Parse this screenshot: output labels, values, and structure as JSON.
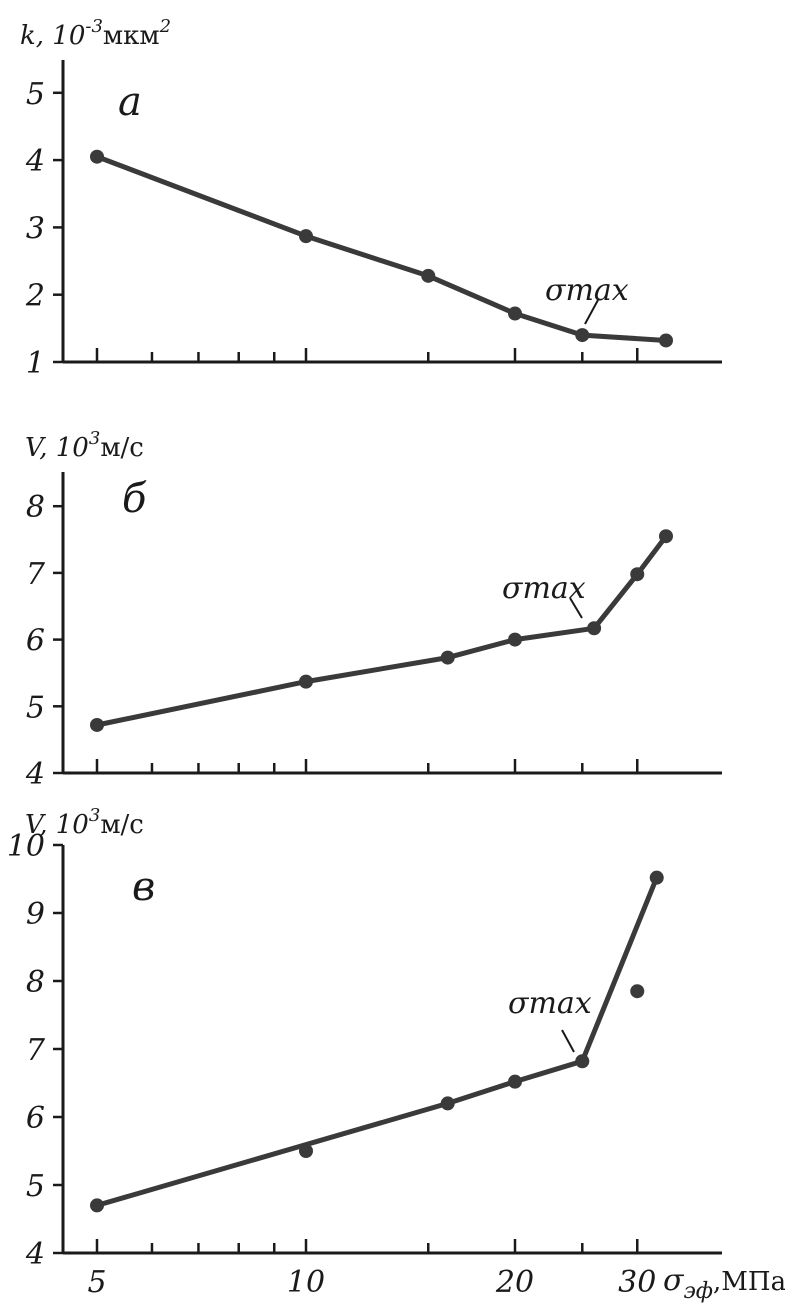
{
  "chart_data": [
    {
      "type": "line",
      "panel_letter": "а",
      "ylabel": "k, 10",
      "ylabel_exp": "-3",
      "ylabel_unit": "мкм",
      "ylabel_unit_exp": "2",
      "ylim": [
        1,
        5.5
      ],
      "xlim": [
        4.5,
        36
      ],
      "xscale": "log",
      "yticks": [
        "1",
        "2",
        "3",
        "4",
        "5"
      ],
      "x": [
        5,
        10,
        15,
        20,
        25,
        33
      ],
      "y": [
        4.05,
        2.87,
        2.28,
        1.72,
        1.4,
        1.32
      ],
      "annotation": "σmax",
      "annotation_x": 25
    },
    {
      "type": "line",
      "panel_letter": "б",
      "ylabel": "V, 10",
      "ylabel_exp": "3",
      "ylabel_unit": "м/с",
      "ylim": [
        4,
        8.6
      ],
      "xlim": [
        4.5,
        36
      ],
      "xscale": "log",
      "yticks": [
        "4",
        "5",
        "6",
        "7",
        "8"
      ],
      "x": [
        5,
        10,
        16,
        20,
        26,
        30,
        33
      ],
      "y": [
        4.72,
        5.37,
        5.73,
        6.0,
        6.17,
        6.98,
        7.55
      ],
      "annotation": "σmax",
      "annotation_x": 26
    },
    {
      "type": "line",
      "panel_letter": "в",
      "ylabel": "V, 10",
      "ylabel_exp": "3",
      "ylabel_unit": "м/с",
      "ylim": [
        4,
        10
      ],
      "xlim": [
        4.5,
        36
      ],
      "xscale": "log",
      "yticks": [
        "4",
        "5",
        "6",
        "7",
        "8",
        "9",
        "10"
      ],
      "xticks": [
        "5",
        "10",
        "20",
        "30"
      ],
      "xlabel": "σ",
      "xlabel_sub": "эф",
      "xlabel_unit": ",МПа",
      "line_x": [
        5,
        16,
        20,
        25,
        32
      ],
      "line_y": [
        4.7,
        6.2,
        6.52,
        6.82,
        9.52
      ],
      "x": [
        5,
        10,
        16,
        20,
        25,
        30,
        32
      ],
      "y": [
        4.7,
        5.5,
        6.2,
        6.52,
        6.82,
        7.85,
        9.52
      ],
      "annotation": "σmax",
      "annotation_x": 25
    }
  ]
}
